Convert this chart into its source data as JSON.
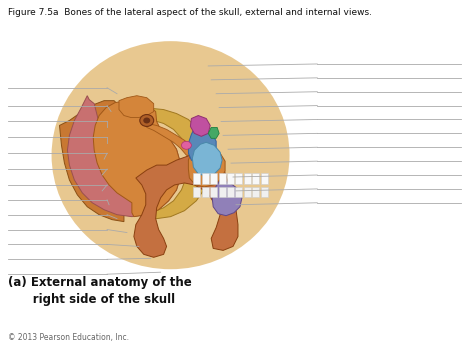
{
  "title": "Figure 7.5a  Bones of the lateral aspect of the skull, external and internal views.",
  "subtitle": "(a) External anatomy of the\n      right side of the skull",
  "copyright": "© 2013 Pearson Education, Inc.",
  "background_color": "#ffffff",
  "title_fontsize": 6.5,
  "subtitle_fontsize": 8.5,
  "copyright_fontsize": 5.5,
  "line_color": "#aaaaaa",
  "line_lw": 0.6
}
